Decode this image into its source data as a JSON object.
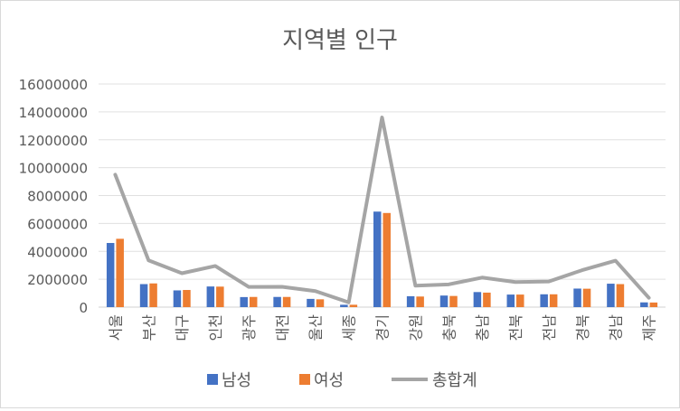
{
  "chart_data": {
    "type": "bar",
    "title": "지역별 인구",
    "xlabel": "",
    "ylabel": "",
    "ylim": [
      0,
      16000000
    ],
    "yticks": [
      0,
      2000000,
      4000000,
      6000000,
      8000000,
      10000000,
      12000000,
      14000000,
      16000000
    ],
    "ytick_labels": [
      "0",
      "2000000",
      "4000000",
      "6000000",
      "8000000",
      "10000000",
      "12000000",
      "14000000",
      "16000000"
    ],
    "grid": true,
    "legend_position": "bottom",
    "categories": [
      "서울",
      "부산",
      "대구",
      "인천",
      "광주",
      "대전",
      "울산",
      "세종",
      "경기",
      "강원",
      "충북",
      "충남",
      "전북",
      "전남",
      "경북",
      "경남",
      "제주"
    ],
    "series": [
      {
        "name": "남성",
        "type": "bar",
        "color": "#4472C4",
        "values": [
          4600000,
          1650000,
          1200000,
          1480000,
          720000,
          730000,
          590000,
          170000,
          6850000,
          780000,
          830000,
          1080000,
          900000,
          920000,
          1330000,
          1680000,
          340000
        ]
      },
      {
        "name": "여성",
        "type": "bar",
        "color": "#ED7D31",
        "values": [
          4900000,
          1700000,
          1230000,
          1470000,
          730000,
          730000,
          560000,
          170000,
          6750000,
          760000,
          800000,
          1040000,
          900000,
          920000,
          1320000,
          1650000,
          330000
        ]
      },
      {
        "name": "총합계",
        "type": "line",
        "color": "#A5A5A5",
        "values": [
          9500000,
          3350000,
          2430000,
          2950000,
          1450000,
          1460000,
          1150000,
          340000,
          13600000,
          1540000,
          1630000,
          2120000,
          1800000,
          1840000,
          2650000,
          3330000,
          670000
        ]
      }
    ]
  }
}
